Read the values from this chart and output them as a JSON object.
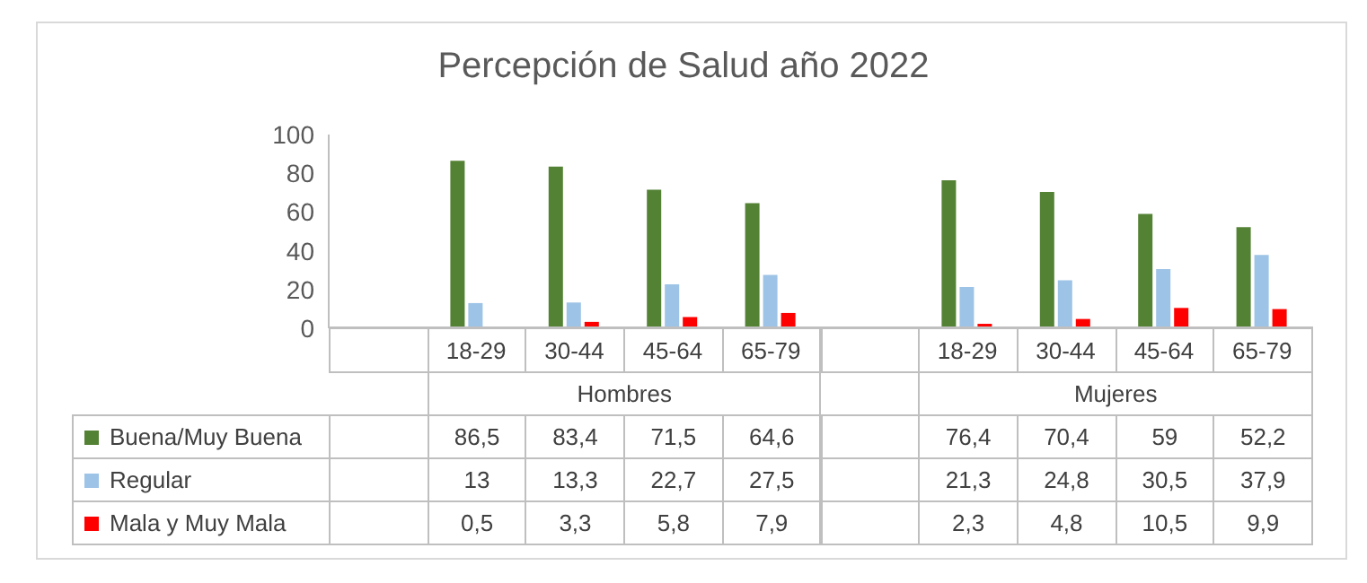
{
  "chart_data": {
    "type": "bar",
    "title": "Percepción de Salud año 2022",
    "categories": [
      null,
      "18-29",
      "30-44",
      "45-64",
      "65-79",
      null,
      "18-29",
      "30-44",
      "45-64",
      "65-79"
    ],
    "annotations": [
      "Hombres",
      "Mujeres"
    ],
    "series": [
      {
        "name": "Buena/Muy Buena",
        "color": "#548235",
        "values": [
          null,
          86.5,
          83.4,
          71.5,
          64.6,
          null,
          76.4,
          70.4,
          59,
          52.2
        ],
        "value_labels": [
          null,
          "86,5",
          "83,4",
          "71,5",
          "64,6",
          null,
          "76,4",
          "70,4",
          "59",
          "52,2"
        ]
      },
      {
        "name": "Regular",
        "color": "#9dc3e6",
        "values": [
          null,
          13,
          13.3,
          22.7,
          27.5,
          null,
          21.3,
          24.8,
          30.5,
          37.9
        ],
        "value_labels": [
          null,
          "13",
          "13,3",
          "22,7",
          "27,5",
          null,
          "21,3",
          "24,8",
          "30,5",
          "37,9"
        ]
      },
      {
        "name": "Mala y Muy Mala",
        "color": "#ff0000",
        "values": [
          null,
          0.5,
          3.3,
          5.8,
          7.9,
          null,
          2.3,
          4.8,
          10.5,
          9.9
        ],
        "value_labels": [
          null,
          "0,5",
          "3,3",
          "5,8",
          "7,9",
          null,
          "2,3",
          "4,8",
          "10,5",
          "9,9"
        ]
      }
    ],
    "ylim": [
      0,
      100
    ],
    "yticks": [
      0,
      20,
      40,
      60,
      80,
      100
    ],
    "grid": false,
    "legend": "bottom left"
  }
}
